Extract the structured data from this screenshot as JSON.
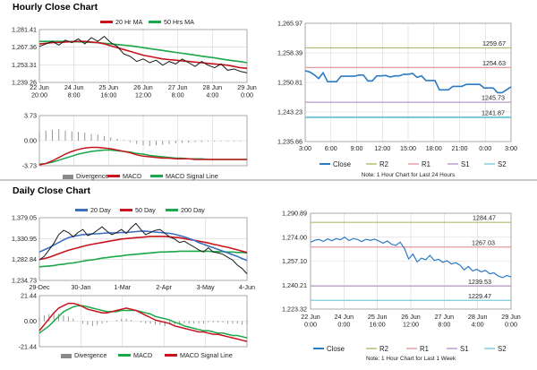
{
  "hourly_title": "Hourly Close Chart",
  "daily_title": "Daily Close Chart",
  "colors": {
    "price": "#1a1a1a",
    "ma_short": "#c8141e",
    "ma_long": "#1aa84a",
    "macd_red": "#c8141e",
    "macd_green": "#1aa84a",
    "divergence": "#8a8a8a",
    "close": "#2b7ac4",
    "r2": "#a8bd6a",
    "r1": "#e59aa0",
    "s1": "#b89ac8",
    "s2": "#7ecad8",
    "ma20d": "#3a6fc4",
    "grid": "#d7d7d7"
  },
  "chart_data": [
    {
      "id": "hourly_price",
      "type": "line",
      "legend": [
        "20 Hr MA",
        "50 Hrs MA"
      ],
      "yticks": [
        "1,281.41",
        "1,267.36",
        "1,253.31",
        "1,239.26"
      ],
      "ylim": [
        1239.26,
        1281.41
      ],
      "xticks": [
        "22 Jun\n20:00",
        "24 Jun\n8:00",
        "25 Jun\n16:00",
        "26 Jun\n12:00",
        "27 Jun\n8:00",
        "28 Jun\n4:00",
        "29 Jun\n0:00"
      ],
      "series": [
        {
          "name": "price",
          "values": [
            1268,
            1270,
            1272,
            1269,
            1273,
            1271,
            1274,
            1270,
            1275,
            1272,
            1276,
            1271,
            1268,
            1262,
            1260,
            1256,
            1258,
            1255,
            1257,
            1253,
            1256,
            1254,
            1258,
            1255,
            1252,
            1256,
            1253,
            1251,
            1254,
            1249,
            1250,
            1248,
            1247
          ]
        },
        {
          "name": "20 Hr MA",
          "values": [
            1270,
            1270.5,
            1271,
            1271.2,
            1271.5,
            1271.8,
            1272,
            1272,
            1271.5,
            1271,
            1270,
            1268.5,
            1267,
            1265.5,
            1264,
            1262.5,
            1261,
            1260,
            1259,
            1258,
            1257.5,
            1257,
            1256.5,
            1256,
            1255.5,
            1255,
            1254.5,
            1254,
            1253.5,
            1253,
            1252,
            1251,
            1250.5
          ]
        },
        {
          "name": "50 Hrs MA",
          "values": [
            1272,
            1272,
            1272,
            1272,
            1272,
            1271.8,
            1271.6,
            1271.4,
            1271.2,
            1271,
            1270.5,
            1270,
            1269.5,
            1269,
            1268.5,
            1267.8,
            1267,
            1266.2,
            1265.5,
            1264.8,
            1264,
            1263.2,
            1262.5,
            1261.8,
            1261,
            1260.2,
            1259.5,
            1258.8,
            1258,
            1257.2,
            1256.5,
            1255.8,
            1255
          ]
        }
      ]
    },
    {
      "id": "hourly_macd",
      "type": "line",
      "legend": [
        "Divergence",
        "MACD",
        "MACD Signal Line"
      ],
      "yticks": [
        "3.73",
        "0.00",
        "-3.73"
      ],
      "ylim": [
        -3.73,
        3.73
      ],
      "series": [
        {
          "name": "Divergence",
          "values": [
            1.3,
            1.5,
            1.6,
            1.7,
            1.5,
            1.4,
            1.3,
            1.2,
            1.0,
            0.9,
            0.7,
            0.5,
            0.3,
            0.1,
            -0.2,
            -0.5,
            -0.7,
            -0.8,
            -0.7,
            -0.6,
            -0.5,
            -0.4,
            -0.3,
            -0.3,
            -0.2,
            -0.2,
            -0.1,
            -0.1,
            -0.1,
            -0.1,
            -0.1,
            -0.1,
            -0.1
          ]
        },
        {
          "name": "MACD",
          "values": [
            -3.6,
            -3.4,
            -3.0,
            -2.5,
            -2.0,
            -1.6,
            -1.3,
            -1.1,
            -1.0,
            -1.0,
            -1.1,
            -1.2,
            -1.4,
            -1.6,
            -1.8,
            -2.1,
            -2.3,
            -2.4,
            -2.5,
            -2.6,
            -2.6,
            -2.7,
            -2.7,
            -2.7,
            -2.8,
            -2.8,
            -2.8,
            -2.8,
            -2.8,
            -2.8,
            -2.8,
            -2.8,
            -2.8
          ]
        },
        {
          "name": "MACD Signal Line",
          "values": [
            -3.5,
            -3.4,
            -3.2,
            -2.9,
            -2.6,
            -2.3,
            -2.0,
            -1.8,
            -1.6,
            -1.5,
            -1.4,
            -1.4,
            -1.5,
            -1.6,
            -1.7,
            -1.9,
            -2.0,
            -2.2,
            -2.3,
            -2.4,
            -2.5,
            -2.6,
            -2.6,
            -2.7,
            -2.7,
            -2.7,
            -2.8,
            -2.8,
            -2.8,
            -2.8,
            -2.8,
            -2.8,
            -2.8
          ]
        }
      ]
    },
    {
      "id": "hourly_pivot",
      "type": "line",
      "yticks": [
        "1,265.97",
        "1,258.39",
        "1,250.81",
        "1,243.23",
        "1,235.66"
      ],
      "ylim": [
        1235.66,
        1265.97
      ],
      "xticks": [
        "3:00",
        "6:00",
        "9:00",
        "12:00",
        "15:00",
        "18:00",
        "21:00",
        "0:00",
        "3:00"
      ],
      "levels": [
        {
          "name": "R2",
          "value": 1259.67,
          "label": "1259.67"
        },
        {
          "name": "R1",
          "value": 1254.63,
          "label": "1254.63"
        },
        {
          "name": "S1",
          "value": 1245.73,
          "label": "1245.73"
        },
        {
          "name": "S2",
          "value": 1241.87,
          "label": "1241.87"
        }
      ],
      "series": [
        {
          "name": "Close",
          "values": [
            1253.8,
            1253.5,
            1252.8,
            1251.8,
            1253.3,
            1251,
            1251,
            1251,
            1252.4,
            1252.4,
            1252.4,
            1252.4,
            1252.7,
            1252.7,
            1251.2,
            1251.2,
            1252.5,
            1252.5,
            1252.6,
            1252.2,
            1252.5,
            1252.5,
            1252.9,
            1252.9,
            1253.1,
            1252.1,
            1252.5,
            1251.3,
            1251.3,
            1251.3,
            1248.9,
            1248.9,
            1248.9,
            1249.8,
            1249.8,
            1249.8,
            1250.3,
            1250.3,
            1250.3,
            1250.3,
            1249.4,
            1249.4,
            1249.4,
            1248.2,
            1248.2,
            1248.9,
            1249.7
          ]
        }
      ],
      "legend": [
        "Close",
        "R2",
        "R1",
        "S1",
        "S2"
      ],
      "note": "Note: 1 Hour Chart for Last 24 Hours"
    },
    {
      "id": "daily_price",
      "type": "line",
      "legend": [
        "20 Day",
        "50 Day",
        "200 Day"
      ],
      "yticks": [
        "1,379.05",
        "1,330.95",
        "1,282.84",
        "1,234.73"
      ],
      "ylim": [
        1234.73,
        1379.05
      ],
      "xticks": [
        "29-Dec",
        "30-Jan",
        "1-Mar",
        "2-Apr",
        "3-May",
        "4-Jun"
      ],
      "series": [
        {
          "name": "price",
          "values": [
            1282,
            1290,
            1305,
            1320,
            1340,
            1350,
            1345,
            1335,
            1345,
            1352,
            1338,
            1342,
            1350,
            1358,
            1348,
            1340,
            1345,
            1352,
            1343,
            1356,
            1366,
            1352,
            1340,
            1345,
            1350,
            1352,
            1343,
            1335,
            1330,
            1322,
            1325,
            1318,
            1312,
            1305,
            1300,
            1310,
            1300,
            1298,
            1295,
            1288,
            1282,
            1270,
            1262,
            1250
          ]
        },
        {
          "name": "20 Day",
          "values": [
            1300,
            1305,
            1310,
            1316,
            1322,
            1328,
            1333,
            1336,
            1338,
            1340,
            1341,
            1342,
            1342,
            1343,
            1344,
            1344,
            1344,
            1345,
            1345,
            1346,
            1347,
            1348,
            1348,
            1347,
            1346,
            1345,
            1344,
            1343,
            1341,
            1338,
            1335,
            1331,
            1327,
            1322,
            1318,
            1314,
            1310,
            1306,
            1302,
            1298,
            1294,
            1290,
            1285,
            1281
          ]
        },
        {
          "name": "50 Day",
          "values": [
            1283,
            1285,
            1288,
            1292,
            1296,
            1300,
            1304,
            1307,
            1310,
            1313,
            1316,
            1318,
            1320,
            1322,
            1324,
            1326,
            1328,
            1330,
            1331,
            1332,
            1333,
            1334,
            1335,
            1336,
            1336,
            1336,
            1336,
            1335,
            1334,
            1333,
            1331,
            1329,
            1327,
            1325,
            1323,
            1321,
            1318,
            1316,
            1313,
            1311,
            1308,
            1305,
            1302,
            1299
          ]
        },
        {
          "name": "200 Day",
          "values": [
            1266,
            1267,
            1268,
            1269,
            1271,
            1272,
            1274,
            1275,
            1277,
            1279,
            1281,
            1282,
            1284,
            1286,
            1287,
            1289,
            1290,
            1291,
            1293,
            1294,
            1295,
            1296,
            1297,
            1298,
            1299,
            1300,
            1300,
            1301,
            1301,
            1302,
            1302,
            1302,
            1302,
            1302,
            1302,
            1302,
            1301,
            1301,
            1301,
            1300,
            1300,
            1299,
            1299,
            1298
          ]
        }
      ]
    },
    {
      "id": "daily_macd",
      "type": "line",
      "legend": [
        "Divergence",
        "MACD",
        "MACD Signal Line"
      ],
      "yticks": [
        "21.44",
        "0.00",
        "-21.44"
      ],
      "ylim": [
        -21.44,
        21.44
      ],
      "series": [
        {
          "name": "Divergence",
          "values": [
            3,
            5,
            6,
            7,
            6,
            5,
            4,
            2,
            0,
            -2,
            -3,
            -4,
            -3,
            -2,
            -1,
            0,
            1,
            2,
            2,
            1,
            0,
            -1,
            -2,
            -2,
            -3,
            -3,
            -4,
            -3,
            -3,
            -3,
            -2,
            -2,
            -2,
            -2,
            -2,
            -1,
            -1,
            -1,
            -1,
            -2,
            -2,
            -2,
            -3,
            -3
          ]
        },
        {
          "name": "MACD",
          "values": [
            -8,
            -3,
            2,
            7,
            11,
            13,
            15,
            15,
            14,
            12,
            10,
            9,
            8,
            7,
            7,
            8,
            9,
            10,
            11,
            10,
            9,
            7,
            5,
            3,
            1,
            0,
            -1,
            -2,
            -4,
            -5,
            -6,
            -7,
            -8,
            -9,
            -9,
            -10,
            -11,
            -11,
            -12,
            -13,
            -14,
            -15,
            -16,
            -17
          ]
        },
        {
          "name": "MACD Signal Line",
          "values": [
            -10,
            -7,
            -4,
            0,
            4,
            8,
            10,
            12,
            13,
            13,
            12,
            11,
            10,
            9,
            8,
            8,
            8,
            9,
            9,
            9,
            9,
            8,
            7,
            6,
            4,
            3,
            2,
            1,
            -1,
            -2,
            -4,
            -5,
            -6,
            -7,
            -8,
            -8,
            -9,
            -10,
            -10,
            -11,
            -12,
            -12,
            -13,
            -14
          ]
        }
      ]
    },
    {
      "id": "daily_pivot",
      "type": "line",
      "yticks": [
        "1,290.89",
        "1,274.00",
        "1,257.10",
        "1,240.21",
        "1,223.32"
      ],
      "ylim": [
        1223.32,
        1290.89
      ],
      "xticks": [
        "22 Jun\n0:00",
        "24 Jun\n0:00",
        "25 Jun\n16:00",
        "26 Jun\n12:00",
        "27 Jun\n8:00",
        "28 Jun\n4:00",
        "29 Jun\n0:00"
      ],
      "levels": [
        {
          "name": "R2",
          "value": 1284.47,
          "label": "1284.47"
        },
        {
          "name": "R1",
          "value": 1267.03,
          "label": "1267.03"
        },
        {
          "name": "S1",
          "value": 1239.53,
          "label": "1239.53"
        },
        {
          "name": "S2",
          "value": 1229.47,
          "label": "1229.47"
        }
      ],
      "series": [
        {
          "name": "Close",
          "values": [
            1270.5,
            1271.8,
            1272.4,
            1271.0,
            1272.8,
            1271.5,
            1273.0,
            1272.2,
            1274.0,
            1271.6,
            1273.1,
            1272.4,
            1270.9,
            1272.5,
            1271.8,
            1272.6,
            1271.4,
            1269.8,
            1271.3,
            1269.0,
            1268.2,
            1270.5,
            1266.1,
            1258.6,
            1262.1,
            1256.6,
            1259.2,
            1258.1,
            1261.2,
            1257.6,
            1258.4,
            1256.2,
            1257.5,
            1255.1,
            1256.0,
            1254.4,
            1251.0,
            1253.4,
            1250.2,
            1251.3,
            1249.5,
            1250.6,
            1248.2,
            1248.9,
            1246.6,
            1245.5,
            1247.0,
            1246.0
          ]
        }
      ],
      "legend": [
        "Close",
        "R2",
        "R1",
        "S1",
        "S2"
      ],
      "note": "Note: 1 Hour Chart for Last 1 Week"
    }
  ]
}
